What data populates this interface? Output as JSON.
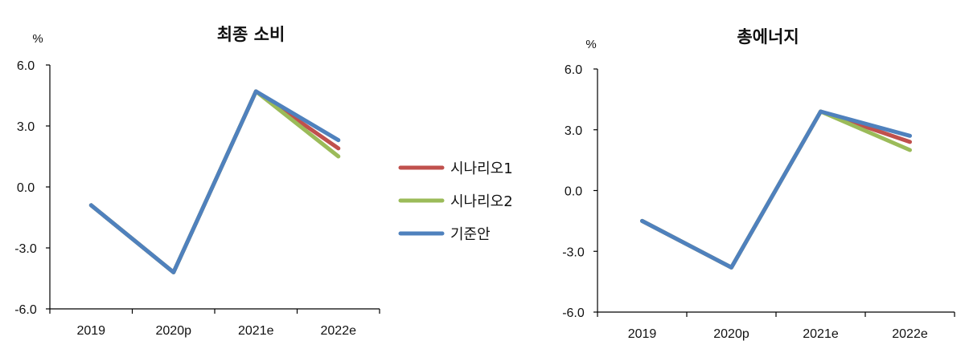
{
  "colors": {
    "scenario1": "#C0504D",
    "scenario2": "#9BBB59",
    "baseline": "#4F81BD",
    "axis": "#000000"
  },
  "legend": {
    "placement": "between-charts",
    "items": [
      "시나리오1",
      "시나리오2",
      "기준안"
    ]
  },
  "chart_data": [
    {
      "type": "line",
      "title": "최종 소비",
      "ylabel": "%",
      "categories": [
        "2019",
        "2020p",
        "2021e",
        "2022e"
      ],
      "ylim": [
        -6.0,
        6.0
      ],
      "yticks": [
        "6.0",
        "3.0",
        "0.0",
        "-3.0",
        "-6.0"
      ],
      "grid": false,
      "series": [
        {
          "name": "시나리오1",
          "values": [
            -0.9,
            -4.2,
            4.7,
            1.9
          ]
        },
        {
          "name": "시나리오2",
          "values": [
            -0.9,
            -4.2,
            4.7,
            1.5
          ]
        },
        {
          "name": "기준안",
          "values": [
            -0.9,
            -4.2,
            4.7,
            2.3
          ]
        }
      ]
    },
    {
      "type": "line",
      "title": "총에너지",
      "ylabel": "%",
      "categories": [
        "2019",
        "2020p",
        "2021e",
        "2022e"
      ],
      "ylim": [
        -6.0,
        6.0
      ],
      "yticks": [
        "6.0",
        "3.0",
        "0.0",
        "-3.0",
        "-6.0"
      ],
      "grid": false,
      "series": [
        {
          "name": "시나리오1",
          "values": [
            -1.5,
            -3.8,
            3.9,
            2.4
          ]
        },
        {
          "name": "시나리오2",
          "values": [
            -1.5,
            -3.8,
            3.9,
            2.0
          ]
        },
        {
          "name": "기준안",
          "values": [
            -1.5,
            -3.8,
            3.9,
            2.7
          ]
        }
      ]
    }
  ]
}
